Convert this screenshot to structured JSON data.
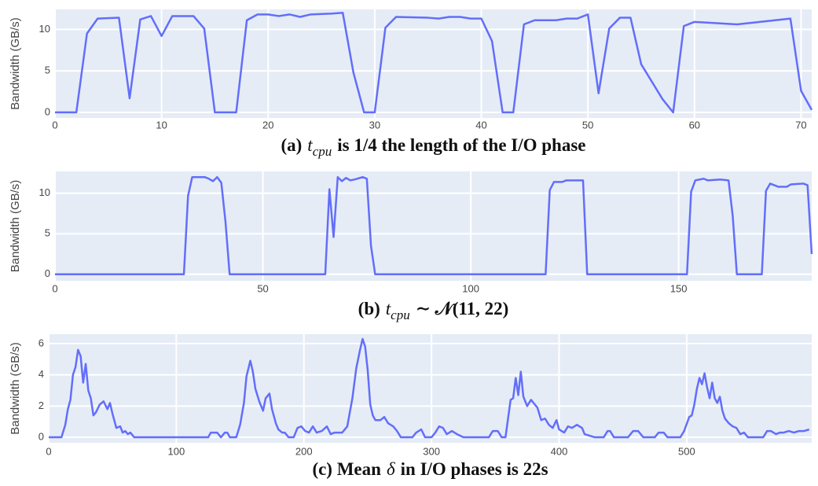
{
  "chart_data": [
    {
      "type": "line",
      "y_label": "Bandwidth (GB/s)",
      "caption": [
        {
          "text": "(a)"
        },
        {
          "text": "t",
          "italic": true
        },
        {
          "text": "cpu",
          "italic": true,
          "sub": true
        },
        {
          "text": "is 1/4 the length of the I/O phase"
        }
      ],
      "xlim": [
        0,
        71
      ],
      "ylim": [
        -0.67,
        12.4
      ],
      "xticks": [
        0,
        10,
        20,
        30,
        40,
        50,
        60,
        70
      ],
      "yticks": [
        0,
        5,
        10
      ],
      "grid": true,
      "series": [
        {
          "color": "#636efa",
          "x": [
            0,
            2,
            3,
            4,
            6,
            7,
            8,
            9,
            10,
            11,
            13,
            14,
            15,
            17,
            18,
            19,
            20,
            21,
            22,
            23,
            24,
            26,
            27,
            28,
            29,
            30,
            31,
            32,
            35,
            36,
            37,
            38,
            39,
            40,
            41,
            42,
            43,
            44,
            45,
            47,
            48,
            49,
            50,
            51,
            52,
            53,
            54,
            55,
            57,
            58,
            59,
            60,
            64,
            69,
            70,
            71
          ],
          "values": [
            0,
            0,
            9.5,
            11.3,
            11.4,
            1.7,
            11.2,
            11.6,
            9.2,
            11.6,
            11.6,
            10.1,
            0,
            0,
            11.1,
            11.8,
            11.8,
            11.6,
            11.8,
            11.5,
            11.8,
            11.9,
            12,
            4.8,
            0,
            0,
            10.2,
            11.5,
            11.4,
            11.3,
            11.5,
            11.5,
            11.3,
            11.3,
            8.6,
            0,
            0,
            10.6,
            11.1,
            11.1,
            11.3,
            11.3,
            11.8,
            2.3,
            10.1,
            11.4,
            11.4,
            5.8,
            1.6,
            0,
            10.4,
            10.9,
            10.6,
            11.3,
            2.6,
            0.3
          ]
        }
      ]
    },
    {
      "type": "line",
      "y_label": "Bandwidth (GB/s)",
      "caption": [
        {
          "text": "(b)"
        },
        {
          "text": "t",
          "italic": true
        },
        {
          "text": "cpu",
          "italic": true,
          "sub": true
        },
        {
          "text": "∼ 𝒩(11, 22)"
        }
      ],
      "xlim": [
        0,
        182
      ],
      "ylim": [
        -0.8,
        12.7
      ],
      "xticks": [
        0,
        50,
        100,
        150
      ],
      "yticks": [
        0,
        5,
        10
      ],
      "grid": true,
      "series": [
        {
          "color": "#636efa",
          "x": [
            0,
            31,
            32,
            33,
            36,
            37,
            38,
            39,
            40,
            41,
            42,
            65,
            66,
            67,
            68,
            69,
            70,
            71,
            72,
            74,
            75,
            76,
            77,
            118,
            119,
            120,
            122,
            123,
            127,
            128,
            152,
            153,
            154,
            156,
            157,
            160,
            162,
            163,
            164,
            170,
            171,
            172,
            174,
            176,
            177,
            180,
            181,
            182
          ],
          "values": [
            0,
            0,
            9.7,
            12,
            12,
            11.8,
            11.5,
            12,
            11.3,
            6.5,
            0,
            0,
            10.5,
            4.6,
            12,
            11.5,
            11.9,
            11.6,
            11.7,
            12,
            11.8,
            3.5,
            0,
            0,
            10.4,
            11.4,
            11.4,
            11.6,
            11.6,
            0,
            0,
            10.2,
            11.6,
            11.8,
            11.6,
            11.7,
            11.6,
            7.2,
            0,
            0,
            10.3,
            11.2,
            10.8,
            10.8,
            11.1,
            11.2,
            11,
            2.5
          ]
        }
      ]
    },
    {
      "type": "line",
      "y_label": "Bandwidth (GB/s)",
      "caption": [
        {
          "text": "(c) Mean"
        },
        {
          "text": "δ",
          "italic": true
        },
        {
          "text": "in I/O phases is 22s"
        }
      ],
      "xlim": [
        0,
        598
      ],
      "ylim": [
        -0.35,
        6.6
      ],
      "xticks": [
        0,
        100,
        200,
        300,
        400,
        500
      ],
      "yticks": [
        0,
        2,
        4,
        6
      ],
      "grid": true,
      "series": [
        {
          "color": "#636efa",
          "x": [
            0,
            10,
            13,
            15,
            17,
            19,
            21,
            23,
            25,
            27,
            29,
            31,
            33,
            35,
            37,
            40,
            43,
            46,
            48,
            50,
            53,
            56,
            58,
            60,
            62,
            64,
            67,
            125,
            127,
            132,
            135,
            138,
            140,
            142,
            147,
            150,
            153,
            155,
            158,
            160,
            162,
            165,
            168,
            170,
            173,
            175,
            178,
            180,
            183,
            185,
            188,
            192,
            195,
            198,
            201,
            204,
            207,
            210,
            214,
            218,
            221,
            224,
            230,
            234,
            238,
            241,
            244,
            246,
            248,
            250,
            252,
            254,
            256,
            260,
            263,
            266,
            270,
            273,
            276,
            285,
            288,
            292,
            295,
            300,
            303,
            306,
            309,
            312,
            316,
            320,
            325,
            345,
            348,
            352,
            355,
            358,
            362,
            364,
            366,
            368,
            370,
            372,
            375,
            378,
            380,
            383,
            386,
            389,
            392,
            395,
            398,
            400,
            404,
            407,
            410,
            414,
            418,
            420,
            424,
            428,
            435,
            438,
            440,
            443,
            454,
            458,
            462,
            466,
            475,
            478,
            482,
            485,
            495,
            498,
            502,
            504,
            506,
            508,
            510,
            512,
            514,
            516,
            518,
            520,
            522,
            524,
            526,
            528,
            530,
            533,
            536,
            539,
            542,
            545,
            548,
            560,
            563,
            566,
            570,
            573,
            576,
            580,
            584,
            588,
            592,
            596
          ],
          "values": [
            0,
            0,
            0.8,
            1.8,
            2.4,
            4,
            4.5,
            5.6,
            5.2,
            3.5,
            4.7,
            3,
            2.5,
            1.4,
            1.6,
            2.1,
            2.3,
            1.8,
            2.2,
            1.5,
            0.6,
            0.7,
            0.3,
            0.4,
            0.2,
            0.3,
            0,
            0,
            0.3,
            0.3,
            0,
            0.3,
            0.3,
            0,
            0,
            0.8,
            2.2,
            3.9,
            4.9,
            4.2,
            3.1,
            2.3,
            1.7,
            2.5,
            2.8,
            1.8,
            0.9,
            0.5,
            0.3,
            0.3,
            0,
            0,
            0.6,
            0.7,
            0.4,
            0.3,
            0.7,
            0.3,
            0.4,
            0.7,
            0.2,
            0.3,
            0.3,
            0.7,
            2.5,
            4.4,
            5.6,
            6.3,
            5.8,
            4.3,
            2.1,
            1.4,
            1.1,
            1.1,
            1.3,
            0.9,
            0.7,
            0.4,
            0,
            0,
            0.3,
            0.5,
            0,
            0,
            0.3,
            0.7,
            0.6,
            0.2,
            0.4,
            0.2,
            0,
            0,
            0.4,
            0.4,
            0,
            0,
            2.4,
            2.5,
            3.8,
            2.7,
            4.2,
            2.6,
            2,
            2.4,
            2.2,
            1.9,
            1.1,
            1.2,
            0.8,
            0.6,
            1.1,
            0.5,
            0.3,
            0.7,
            0.6,
            0.8,
            0.6,
            0.2,
            0.1,
            0,
            0,
            0.4,
            0.4,
            0,
            0,
            0.4,
            0.4,
            0,
            0,
            0.3,
            0.3,
            0,
            0,
            0.4,
            1.3,
            1.4,
            2.1,
            3.1,
            3.8,
            3.4,
            4.1,
            3.2,
            2.5,
            3.5,
            2.5,
            2.2,
            2.6,
            1.7,
            1.2,
            0.9,
            0.7,
            0.6,
            0.2,
            0.3,
            0,
            0,
            0.4,
            0.4,
            0.2,
            0.3,
            0.3,
            0.4,
            0.3,
            0.4,
            0.4,
            0.5
          ]
        }
      ]
    }
  ]
}
